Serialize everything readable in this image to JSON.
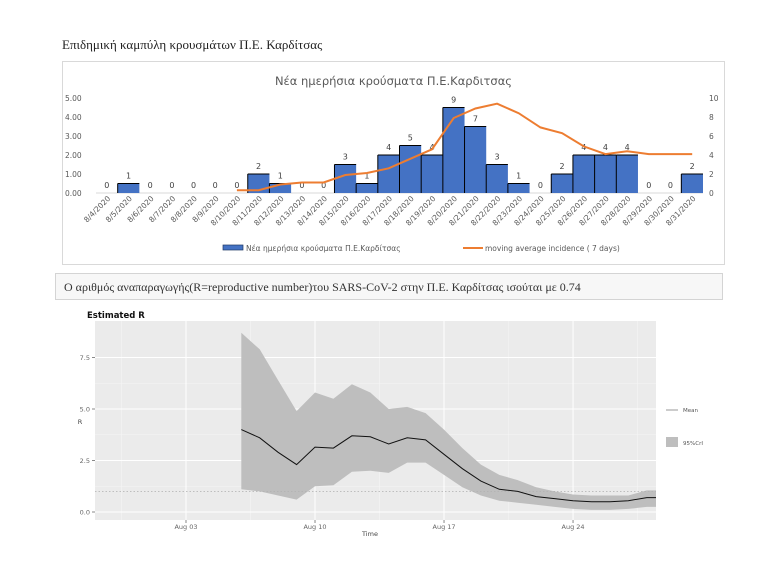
{
  "page": {
    "heading": "Επιδημική καμπύλη κρουσμάτων Π.Ε. Καρδίτσας",
    "info_text": "Ο αριθμός αναπαραγωγής(R=reproductive number)του SARS-CoV-2 στην Π.Ε. Καρδίτσας ισούται με 0.74"
  },
  "colors": {
    "bar": "#4472c4",
    "line": "#ed7d31",
    "ribbon": "#bebebe",
    "panel": "#ebebeb"
  },
  "chart_data": [
    {
      "type": "bar",
      "title": "Νέα ημερήσια κρούσματα Π.Ε.Καρδιτσας",
      "xlabel": "",
      "ylabel": "",
      "categories": [
        "8/4/2020",
        "8/5/2020",
        "8/6/2020",
        "8/7/2020",
        "8/8/2020",
        "8/9/2020",
        "8/10/2020",
        "8/11/2020",
        "8/12/2020",
        "8/13/2020",
        "8/14/2020",
        "8/15/2020",
        "8/16/2020",
        "8/17/2020",
        "8/18/2020",
        "8/19/2020",
        "8/20/2020",
        "8/21/2020",
        "8/22/2020",
        "8/23/2020",
        "8/24/2020",
        "8/25/2020",
        "8/26/2020",
        "8/27/2020",
        "8/28/2020",
        "8/29/2020",
        "8/30/2020",
        "8/31/2020"
      ],
      "series": [
        {
          "name": "Νέα ημερήσια κρούσματα Π.Ε.Καρδίτσας",
          "type": "bar",
          "axis": "right",
          "values": [
            0,
            1,
            0,
            0,
            0,
            0,
            0,
            2,
            1,
            0,
            0,
            3,
            1,
            4,
            5,
            4,
            9,
            7,
            3,
            1,
            0,
            2,
            4,
            4,
            4,
            0,
            0,
            2
          ],
          "labels": [
            "0",
            "1",
            "0",
            "0",
            "0",
            "0",
            "0",
            "2",
            "1",
            "0",
            "0",
            "3",
            "1",
            "4",
            "5",
            "4",
            "9",
            "7",
            "3",
            "1",
            "0",
            "2",
            "4",
            "4",
            "4",
            "0",
            "0",
            "2"
          ]
        },
        {
          "name": "moving average incidence ( 7 days)",
          "type": "line",
          "axis": "right",
          "values": [
            null,
            null,
            null,
            null,
            null,
            null,
            0.3,
            0.3,
            0.9,
            1.1,
            1.1,
            1.9,
            2.1,
            2.6,
            3.6,
            4.6,
            7.9,
            8.9,
            9.4,
            8.4,
            6.9,
            6.3,
            4.9,
            4.1,
            4.4,
            4.1,
            4.1,
            4.1
          ]
        }
      ],
      "left_axis": {
        "ylim": [
          0,
          5
        ],
        "ticks": [
          "0.00",
          "1.00",
          "2.00",
          "3.00",
          "4.00",
          "5.00"
        ]
      },
      "right_axis": {
        "ylim": [
          0,
          10
        ],
        "ticks": [
          "0",
          "2",
          "4",
          "6",
          "8",
          "10"
        ]
      },
      "legend": {
        "placement": "bottom",
        "entries": [
          "Νέα ημερήσια κρούσματα Π.Ε.Καρδίτσας",
          "moving average incidence ( 7 days)"
        ]
      },
      "grid": false
    },
    {
      "type": "line",
      "title": "Estimated R",
      "xlabel": "Time",
      "ylabel": "R",
      "x_ticks": [
        "Aug 03",
        "Aug 10",
        "Aug 17",
        "Aug 24"
      ],
      "y_ticks": [
        "0.0",
        "2.5",
        "5.0",
        "7.5"
      ],
      "ylim": [
        -0.4,
        8.8
      ],
      "xlim_days_from_aug03": [
        -3,
        27
      ],
      "reference_line": 1.0,
      "grid": true,
      "legend": {
        "placement": "right",
        "entries": [
          "Mean",
          "95%CrI"
        ]
      },
      "series": [
        {
          "name": "Mean",
          "x_days_from_aug03": [
            3,
            4,
            5,
            6,
            7,
            8,
            9,
            10,
            11,
            12,
            13,
            14,
            15,
            16,
            17,
            18,
            19,
            20,
            21,
            22,
            23,
            24,
            25,
            25.5
          ],
          "values": [
            4.0,
            3.6,
            2.9,
            2.3,
            3.15,
            3.1,
            3.7,
            3.65,
            3.3,
            3.6,
            3.5,
            2.8,
            2.1,
            1.5,
            1.1,
            1.0,
            0.75,
            0.65,
            0.55,
            0.5,
            0.5,
            0.55,
            0.7,
            0.7
          ]
        },
        {
          "name": "95%CrI",
          "x_days_from_aug03": [
            3,
            4,
            5,
            6,
            7,
            8,
            9,
            10,
            11,
            12,
            13,
            14,
            15,
            16,
            17,
            18,
            19,
            20,
            21,
            22,
            23,
            24,
            25,
            25.5
          ],
          "upper": [
            8.7,
            7.9,
            6.4,
            4.9,
            5.8,
            5.5,
            6.2,
            5.8,
            5.0,
            5.1,
            4.8,
            4.0,
            3.1,
            2.3,
            1.8,
            1.55,
            1.2,
            1.0,
            0.85,
            0.8,
            0.8,
            0.8,
            1.05,
            1.05
          ],
          "lower": [
            1.1,
            1.0,
            0.8,
            0.6,
            1.25,
            1.3,
            1.95,
            2.0,
            1.9,
            2.4,
            2.4,
            1.8,
            1.2,
            0.8,
            0.55,
            0.45,
            0.35,
            0.25,
            0.15,
            0.1,
            0.1,
            0.15,
            0.25,
            0.25
          ]
        }
      ]
    }
  ]
}
